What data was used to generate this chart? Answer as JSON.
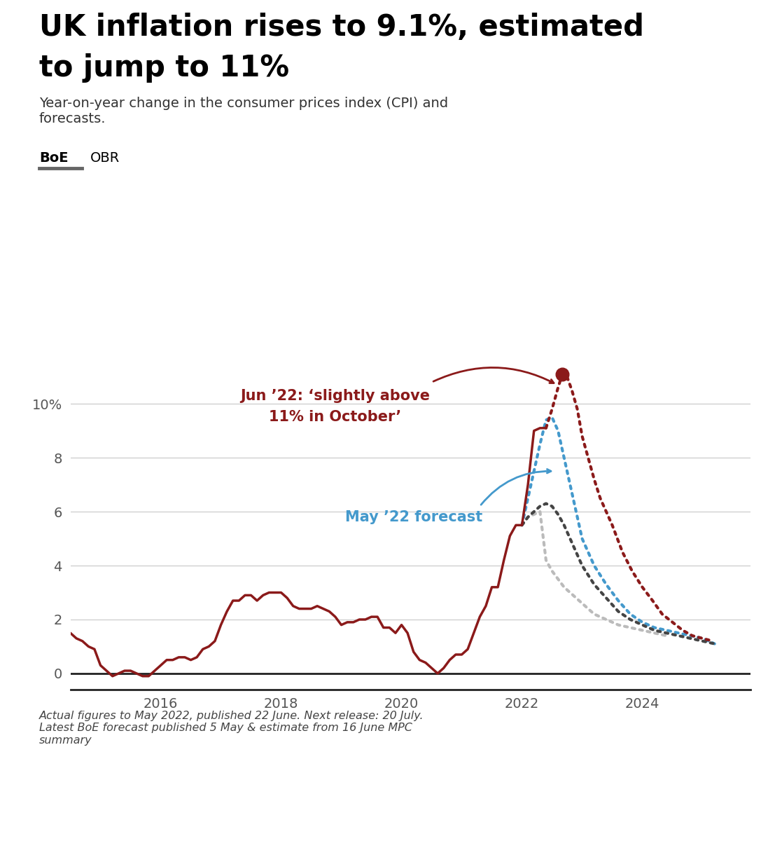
{
  "title_line1": "UK inflation rises to 9.1%, estimated",
  "title_line2": "to jump to 11%",
  "subtitle": "Year-on-year change in the consumer prices index (CPI) and\nforecasts.",
  "legend_boe": "BoE",
  "legend_obr": "OBR",
  "legend_color": "#666666",
  "footnote": "Actual figures to May 2022, published 22 June. Next release: 20 July.\nLatest BoE forecast published 5 May & estimate from 16 June MPC\nsummary",
  "annotation_red_line1": "Jun ’22: ‘slightly above",
  "annotation_red_line2": "11% in October’",
  "annotation_blue": "May ’22 forecast",
  "actual_color": "#8B1A1A",
  "boe_jun_color": "#8B1A1A",
  "boe_may_color": "#444444",
  "obr_lower_color": "#bbbbbb",
  "obr_upper_color": "#4499cc",
  "background_color": "#ffffff",
  "ylim": [
    -0.6,
    12.5
  ],
  "yticks": [
    0,
    2,
    4,
    6,
    8,
    10
  ],
  "ytick_labels": [
    "0",
    "2",
    "4",
    "6",
    "8",
    "10%"
  ],
  "xlim": [
    2014.5,
    2025.8
  ],
  "xticks": [
    2016,
    2018,
    2020,
    2022,
    2024
  ],
  "actual_x": [
    2014.5,
    2014.6,
    2014.7,
    2014.8,
    2014.9,
    2015.0,
    2015.1,
    2015.2,
    2015.3,
    2015.4,
    2015.5,
    2015.6,
    2015.7,
    2015.8,
    2015.9,
    2016.0,
    2016.1,
    2016.2,
    2016.3,
    2016.4,
    2016.5,
    2016.6,
    2016.7,
    2016.8,
    2016.9,
    2017.0,
    2017.1,
    2017.2,
    2017.3,
    2017.4,
    2017.5,
    2017.6,
    2017.7,
    2017.8,
    2017.9,
    2018.0,
    2018.1,
    2018.2,
    2018.3,
    2018.4,
    2018.5,
    2018.6,
    2018.7,
    2018.8,
    2018.9,
    2019.0,
    2019.1,
    2019.2,
    2019.3,
    2019.4,
    2019.5,
    2019.6,
    2019.7,
    2019.8,
    2019.9,
    2020.0,
    2020.1,
    2020.2,
    2020.3,
    2020.4,
    2020.5,
    2020.6,
    2020.7,
    2020.8,
    2020.9,
    2021.0,
    2021.1,
    2021.2,
    2021.3,
    2021.4,
    2021.5,
    2021.6,
    2021.7,
    2021.8,
    2021.9,
    2022.0,
    2022.1,
    2022.2,
    2022.3,
    2022.4
  ],
  "actual_y": [
    1.5,
    1.3,
    1.2,
    1.0,
    0.9,
    0.3,
    0.1,
    -0.1,
    0.0,
    0.1,
    0.1,
    0.0,
    -0.1,
    -0.1,
    0.1,
    0.3,
    0.5,
    0.5,
    0.6,
    0.6,
    0.5,
    0.6,
    0.9,
    1.0,
    1.2,
    1.8,
    2.3,
    2.7,
    2.7,
    2.9,
    2.9,
    2.7,
    2.9,
    3.0,
    3.0,
    3.0,
    2.8,
    2.5,
    2.4,
    2.4,
    2.4,
    2.5,
    2.4,
    2.3,
    2.1,
    1.8,
    1.9,
    1.9,
    2.0,
    2.0,
    2.1,
    2.1,
    1.7,
    1.7,
    1.5,
    1.8,
    1.5,
    0.8,
    0.5,
    0.4,
    0.2,
    0.0,
    0.2,
    0.5,
    0.7,
    0.7,
    0.9,
    1.5,
    2.1,
    2.5,
    3.2,
    3.2,
    4.2,
    5.1,
    5.5,
    5.5,
    7.0,
    9.0,
    9.1,
    9.1
  ],
  "boe_jun_x": [
    2022.4,
    2022.5,
    2022.6,
    2022.67,
    2022.75,
    2022.83,
    2022.92,
    2023.0,
    2023.1,
    2023.2,
    2023.3,
    2023.5,
    2023.67,
    2023.83,
    2024.0,
    2024.17,
    2024.33,
    2024.5,
    2024.67,
    2024.83,
    2025.0,
    2025.17
  ],
  "boe_jun_y": [
    9.1,
    9.8,
    10.6,
    11.1,
    11.0,
    10.5,
    9.8,
    8.8,
    8.0,
    7.2,
    6.5,
    5.5,
    4.5,
    3.8,
    3.2,
    2.7,
    2.2,
    1.9,
    1.6,
    1.4,
    1.3,
    1.2
  ],
  "boe_may_x": [
    2022.0,
    2022.1,
    2022.2,
    2022.3,
    2022.4,
    2022.5,
    2022.6,
    2022.7,
    2022.8,
    2022.9,
    2023.0,
    2023.2,
    2023.4,
    2023.6,
    2023.8,
    2024.0,
    2024.2,
    2024.4,
    2024.6,
    2024.8,
    2025.0,
    2025.2
  ],
  "boe_may_y": [
    5.5,
    5.8,
    6.0,
    6.2,
    6.3,
    6.2,
    5.9,
    5.5,
    5.0,
    4.5,
    4.0,
    3.3,
    2.8,
    2.3,
    2.0,
    1.8,
    1.6,
    1.5,
    1.4,
    1.3,
    1.2,
    1.1
  ],
  "obr_x": [
    2022.0,
    2022.1,
    2022.2,
    2022.3,
    2022.4,
    2022.5,
    2022.6,
    2022.7,
    2022.8,
    2022.9,
    2023.0,
    2023.2,
    2023.4,
    2023.6,
    2023.8,
    2024.0,
    2024.2,
    2024.4,
    2024.6,
    2024.8,
    2025.0,
    2025.2
  ],
  "obr_y": [
    5.5,
    6.5,
    7.5,
    8.5,
    9.4,
    9.5,
    9.0,
    8.0,
    7.0,
    6.0,
    5.0,
    4.0,
    3.3,
    2.7,
    2.2,
    1.9,
    1.7,
    1.6,
    1.5,
    1.4,
    1.3,
    1.1
  ],
  "obr_lower_x": [
    2022.0,
    2022.1,
    2022.2,
    2022.3,
    2022.4,
    2022.5,
    2022.6,
    2022.7,
    2022.8,
    2022.9,
    2023.0,
    2023.2,
    2023.4,
    2023.6,
    2023.8,
    2024.0,
    2024.2,
    2024.4
  ],
  "obr_lower_y": [
    5.5,
    5.8,
    5.9,
    6.0,
    4.2,
    3.8,
    3.5,
    3.2,
    3.0,
    2.8,
    2.6,
    2.2,
    2.0,
    1.8,
    1.7,
    1.6,
    1.5,
    1.4
  ],
  "peak_x": 2022.67,
  "peak_y": 11.1
}
